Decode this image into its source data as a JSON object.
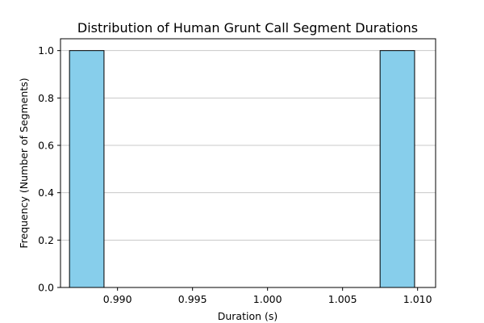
{
  "chart_data": {
    "type": "bar",
    "title": "Distribution of Human Grunt Call Segment Durations",
    "xlabel": "Duration (s)",
    "ylabel": "Frequency (Number of Segments)",
    "xlim": [
      0.9862,
      1.0112
    ],
    "ylim": [
      0,
      1.05
    ],
    "xticks": [
      0.99,
      0.995,
      1.0,
      1.005,
      1.01
    ],
    "xtick_labels": [
      "0.990",
      "0.995",
      "1.000",
      "1.005",
      "1.010"
    ],
    "yticks": [
      0.0,
      0.2,
      0.4,
      0.6,
      0.8,
      1.0
    ],
    "ytick_labels": [
      "0.0",
      "0.2",
      "0.4",
      "0.6",
      "0.8",
      "1.0"
    ],
    "grid": "y",
    "bar_color": "#87CEEB",
    "bar_edge_color": "#000000",
    "bins": [
      {
        "x0": 0.9868,
        "x1": 0.9891,
        "count": 1
      },
      {
        "x0": 0.9891,
        "x1": 0.9914,
        "count": 0
      },
      {
        "x0": 0.9914,
        "x1": 0.9937,
        "count": 0
      },
      {
        "x0": 0.9937,
        "x1": 0.996,
        "count": 0
      },
      {
        "x0": 0.996,
        "x1": 0.9983,
        "count": 0
      },
      {
        "x0": 0.9983,
        "x1": 1.0006,
        "count": 0
      },
      {
        "x0": 1.0006,
        "x1": 1.0029,
        "count": 0
      },
      {
        "x0": 1.0029,
        "x1": 1.0052,
        "count": 0
      },
      {
        "x0": 1.0052,
        "x1": 1.0075,
        "count": 0
      },
      {
        "x0": 1.0075,
        "x1": 1.0098,
        "count": 1
      }
    ]
  }
}
